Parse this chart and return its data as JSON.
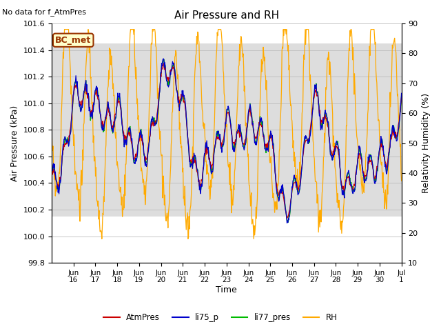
{
  "title": "Air Pressure and RH",
  "top_left_text": "No data for f_AtmPres",
  "box_label": "BC_met",
  "xlabel": "Time",
  "ylabel_left": "Air Pressure (kPa)",
  "ylabel_right": "Relativity Humidity (%)",
  "ylim_left": [
    99.8,
    101.6
  ],
  "ylim_right": [
    10,
    90
  ],
  "xtick_labels": [
    "Jun\n16",
    "Jun\n17",
    "Jun\n18",
    "Jun\n19",
    "Jun\n20",
    "Jun\n21",
    "Jun\n22",
    "Jun\n23",
    "Jun\n24",
    "Jun\n25",
    "Jun\n26",
    "Jun\n27",
    "Jun\n28",
    "Jun\n29",
    "Jun\n30",
    "Jul\n1"
  ],
  "colors": {
    "AtmPres": "#cc0000",
    "li75_p": "#0000cc",
    "li77_pres": "#00bb00",
    "RH": "#ffaa00"
  },
  "gray_band": [
    100.15,
    101.45
  ],
  "background_color": "#ffffff",
  "grid_color": "#bbbbbb",
  "box_facecolor": "#ffffcc",
  "box_edgecolor": "#993300"
}
